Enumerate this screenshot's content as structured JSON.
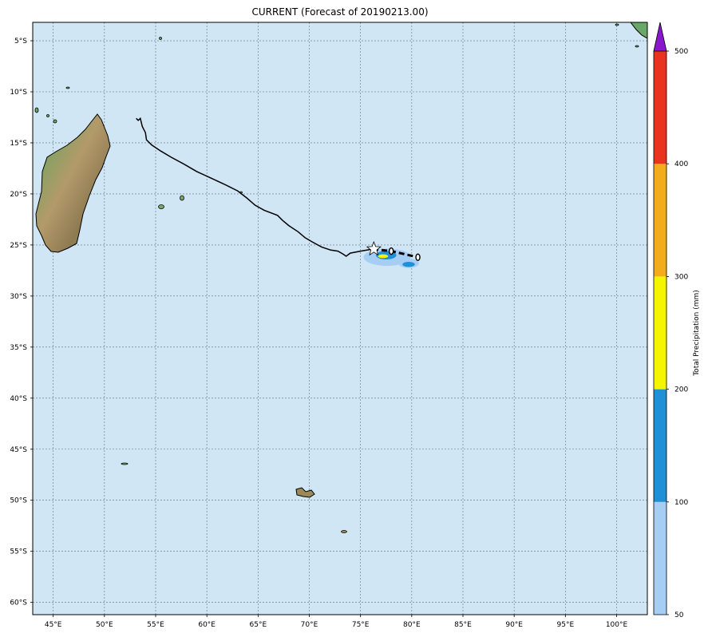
{
  "title": "CURRENT (Forecast of 20190213.00)",
  "map": {
    "lon_range": [
      43,
      103
    ],
    "lat_range": [
      -61.2,
      -3.2
    ],
    "ocean_color": "#d0e6f5",
    "gridline_color": "#5f6f80",
    "lon_ticks": [
      {
        "value": 45,
        "label": "45°E"
      },
      {
        "value": 50,
        "label": "50°E"
      },
      {
        "value": 55,
        "label": "55°E"
      },
      {
        "value": 60,
        "label": "60°E"
      },
      {
        "value": 65,
        "label": "65°E"
      },
      {
        "value": 70,
        "label": "70°E"
      },
      {
        "value": 75,
        "label": "75°E"
      },
      {
        "value": 80,
        "label": "80°E"
      },
      {
        "value": 85,
        "label": "85°E"
      },
      {
        "value": 90,
        "label": "90°E"
      },
      {
        "value": 95,
        "label": "95°E"
      },
      {
        "value": 100,
        "label": "100°E"
      }
    ],
    "lat_ticks": [
      {
        "value": -5,
        "label": "5°S"
      },
      {
        "value": -10,
        "label": "10°S"
      },
      {
        "value": -15,
        "label": "15°S"
      },
      {
        "value": -20,
        "label": "20°S"
      },
      {
        "value": -25,
        "label": "25°S"
      },
      {
        "value": -30,
        "label": "30°S"
      },
      {
        "value": -35,
        "label": "35°S"
      },
      {
        "value": -40,
        "label": "40°S"
      },
      {
        "value": -45,
        "label": "45°S"
      },
      {
        "value": -50,
        "label": "50°S"
      },
      {
        "value": -55,
        "label": "55°S"
      },
      {
        "value": -60,
        "label": "60°S"
      }
    ],
    "past_track": [
      [
        53.1,
        -12.6
      ],
      [
        53.3,
        -12.8
      ],
      [
        53.5,
        -12.6
      ],
      [
        53.7,
        -13.4
      ],
      [
        54.0,
        -14.0
      ],
      [
        54.1,
        -14.7
      ],
      [
        54.6,
        -15.2
      ],
      [
        55.5,
        -15.8
      ],
      [
        56.5,
        -16.4
      ],
      [
        57.8,
        -17.1
      ],
      [
        59.0,
        -17.8
      ],
      [
        60.5,
        -18.5
      ],
      [
        61.8,
        -19.1
      ],
      [
        63.0,
        -19.7
      ],
      [
        63.9,
        -20.4
      ],
      [
        64.7,
        -21.1
      ],
      [
        65.6,
        -21.6
      ],
      [
        66.9,
        -22.1
      ],
      [
        67.4,
        -22.6
      ],
      [
        68.0,
        -23.1
      ],
      [
        68.9,
        -23.7
      ],
      [
        69.6,
        -24.3
      ],
      [
        70.3,
        -24.7
      ],
      [
        71.2,
        -25.2
      ],
      [
        72.1,
        -25.5
      ],
      [
        72.8,
        -25.6
      ],
      [
        73.3,
        -25.9
      ],
      [
        73.6,
        -26.1
      ],
      [
        74.0,
        -25.8
      ],
      [
        75.0,
        -25.6
      ],
      [
        76.2,
        -25.4
      ]
    ],
    "forecast_track": [
      [
        76.2,
        -25.4
      ],
      [
        78.0,
        -25.6
      ],
      [
        80.6,
        -26.2
      ]
    ],
    "forecast_points": [
      [
        78.0,
        -25.6
      ],
      [
        80.6,
        -26.2
      ]
    ],
    "current_position": [
      76.3,
      -25.4
    ],
    "precip_blobs": [
      {
        "level": 50,
        "color": "#a6cef5",
        "cx": 77.6,
        "cy": -26.2,
        "rx": 2.3,
        "ry": 0.85
      },
      {
        "level": 50,
        "color": "#a6cef5",
        "cx": 79.7,
        "cy": -26.8,
        "rx": 1.0,
        "ry": 0.45
      },
      {
        "level": 100,
        "color": "#1f8fd6",
        "cx": 77.5,
        "cy": -26.0,
        "rx": 1.0,
        "ry": 0.42
      },
      {
        "level": 100,
        "color": "#1f8fd6",
        "cx": 79.7,
        "cy": -26.9,
        "rx": 0.6,
        "ry": 0.25
      },
      {
        "level": 200,
        "color": "#f5f500",
        "cx": 77.2,
        "cy": -26.1,
        "rx": 0.5,
        "ry": 0.18
      }
    ]
  },
  "colorbar": {
    "label": "Total Precipitation (mm)",
    "levels": [
      {
        "value": "50",
        "color": "#a6cef5"
      },
      {
        "value": "100",
        "color": "#1f8fd6"
      },
      {
        "value": "200",
        "color": "#f5f500"
      },
      {
        "value": "300",
        "color": "#f5ac1c"
      },
      {
        "value": "400",
        "color": "#e8341f"
      },
      {
        "value": "500",
        "color": ""
      }
    ],
    "extend_color": "#8a17cf"
  }
}
